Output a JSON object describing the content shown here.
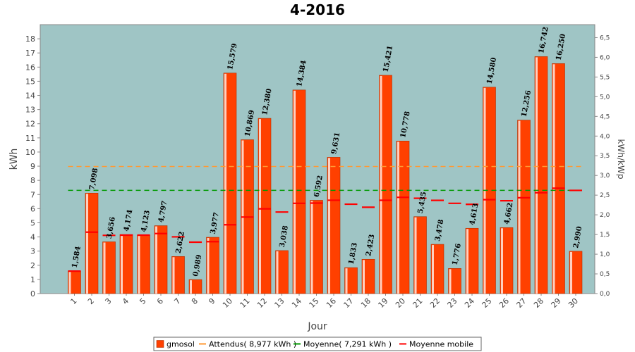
{
  "chart_data": {
    "type": "bar",
    "title": "4-2016",
    "xlabel": "Jour",
    "ylabel": "kWh",
    "y2label": "kWh/kWp",
    "ylim": [
      0,
      19
    ],
    "y_ticks": [
      "0",
      "1",
      "2",
      "3",
      "4",
      "5",
      "6",
      "7",
      "8",
      "9",
      "10",
      "11",
      "12",
      "13",
      "14",
      "15",
      "16",
      "17",
      "18"
    ],
    "y2lim": [
      0,
      6.83
    ],
    "y2_ticks": [
      "0,0",
      "0,5",
      "1,0",
      "1,5",
      "2,0",
      "2,5",
      "3,0",
      "3,5",
      "4,0",
      "4,5",
      "5,0",
      "5,5",
      "6,0",
      "6,5"
    ],
    "grid": false,
    "legend_position": "bottom",
    "background": "#9fc5c5",
    "categories": [
      "1",
      "2",
      "3",
      "4",
      "5",
      "6",
      "7",
      "8",
      "9",
      "10",
      "11",
      "12",
      "13",
      "14",
      "15",
      "16",
      "17",
      "18",
      "19",
      "20",
      "21",
      "22",
      "23",
      "24",
      "25",
      "26",
      "27",
      "28",
      "29",
      "30"
    ],
    "series": [
      {
        "name": "gmosol",
        "kind": "bar",
        "color": "#ff4000",
        "values": [
          1.584,
          7.098,
          3.656,
          4.174,
          4.123,
          4.797,
          2.622,
          0.989,
          3.977,
          15.579,
          10.869,
          12.38,
          3.038,
          14.384,
          6.592,
          9.631,
          1.833,
          2.423,
          15.421,
          10.778,
          5.435,
          3.478,
          1.776,
          4.613,
          14.58,
          4.662,
          12.256,
          16.742,
          16.25,
          2.99
        ],
        "labels": [
          "1,584",
          "7,098",
          "3,656",
          "4,174",
          "4,123",
          "4,797",
          "2,622",
          "0,989",
          "3,977",
          "15,579",
          "10,869",
          "12,380",
          "3,038",
          "14,384",
          "6,592",
          "9,631",
          "1,833",
          "2,423",
          "15,421",
          "10,778",
          "5,435",
          "3,478",
          "1,776",
          "4,613",
          "14,580",
          "4,662",
          "12,256",
          "16,742",
          "16,250",
          "2,990"
        ]
      },
      {
        "name": "Attendus( 8,977 kWh )",
        "kind": "dashed-line",
        "color": "#ff9933",
        "value": 8.977
      },
      {
        "name": "Moyenne( 7,291 kWh )",
        "kind": "dashed-line",
        "color": "#009900",
        "value": 7.291
      },
      {
        "name": "Moyenne mobile",
        "kind": "step-marker",
        "color": "#ff0000",
        "values": [
          1.584,
          4.341,
          4.113,
          4.128,
          4.127,
          4.239,
          4.008,
          3.631,
          3.67,
          4.861,
          5.407,
          5.988,
          5.761,
          6.377,
          6.392,
          6.594,
          6.314,
          6.098,
          6.589,
          6.798,
          6.733,
          6.585,
          6.376,
          6.303,
          6.634,
          6.558,
          6.769,
          7.125,
          7.443,
          7.291
        ]
      }
    ]
  }
}
